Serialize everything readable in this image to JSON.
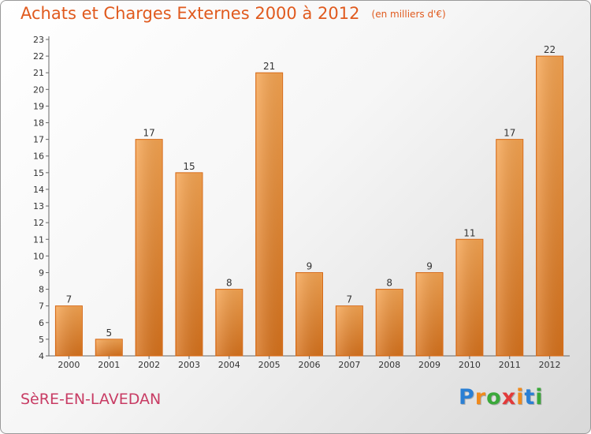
{
  "title": "Achats et Charges Externes 2000 à 2012",
  "unit": "(en milliers d'€)",
  "commune": "SèRE-EN-LAVEDAN",
  "brand": {
    "letters": [
      "P",
      "r",
      "o",
      "x",
      "i",
      "t",
      "i"
    ],
    "colors": [
      "#2a7fd4",
      "#f08a1c",
      "#3aa83a",
      "#e23a3a",
      "#f08a1c",
      "#2a7fd4",
      "#3aa83a"
    ]
  },
  "colors": {
    "bar": "#f39b47",
    "bar_dark": "#d9731c",
    "text": "#333333",
    "accent": "#e05a1e"
  },
  "chart_data": {
    "type": "bar",
    "categories": [
      "2000",
      "2001",
      "2002",
      "2003",
      "2004",
      "2005",
      "2006",
      "2007",
      "2008",
      "2009",
      "2010",
      "2011",
      "2012"
    ],
    "values": [
      7,
      5,
      17,
      15,
      8,
      21,
      9,
      7,
      8,
      9,
      11,
      17,
      22
    ],
    "ylim": [
      4,
      23
    ],
    "yticks": [
      4,
      5,
      6,
      7,
      8,
      9,
      10,
      11,
      12,
      13,
      14,
      15,
      16,
      17,
      18,
      19,
      20,
      21,
      22,
      23
    ],
    "grid": false,
    "data_labels": true
  }
}
